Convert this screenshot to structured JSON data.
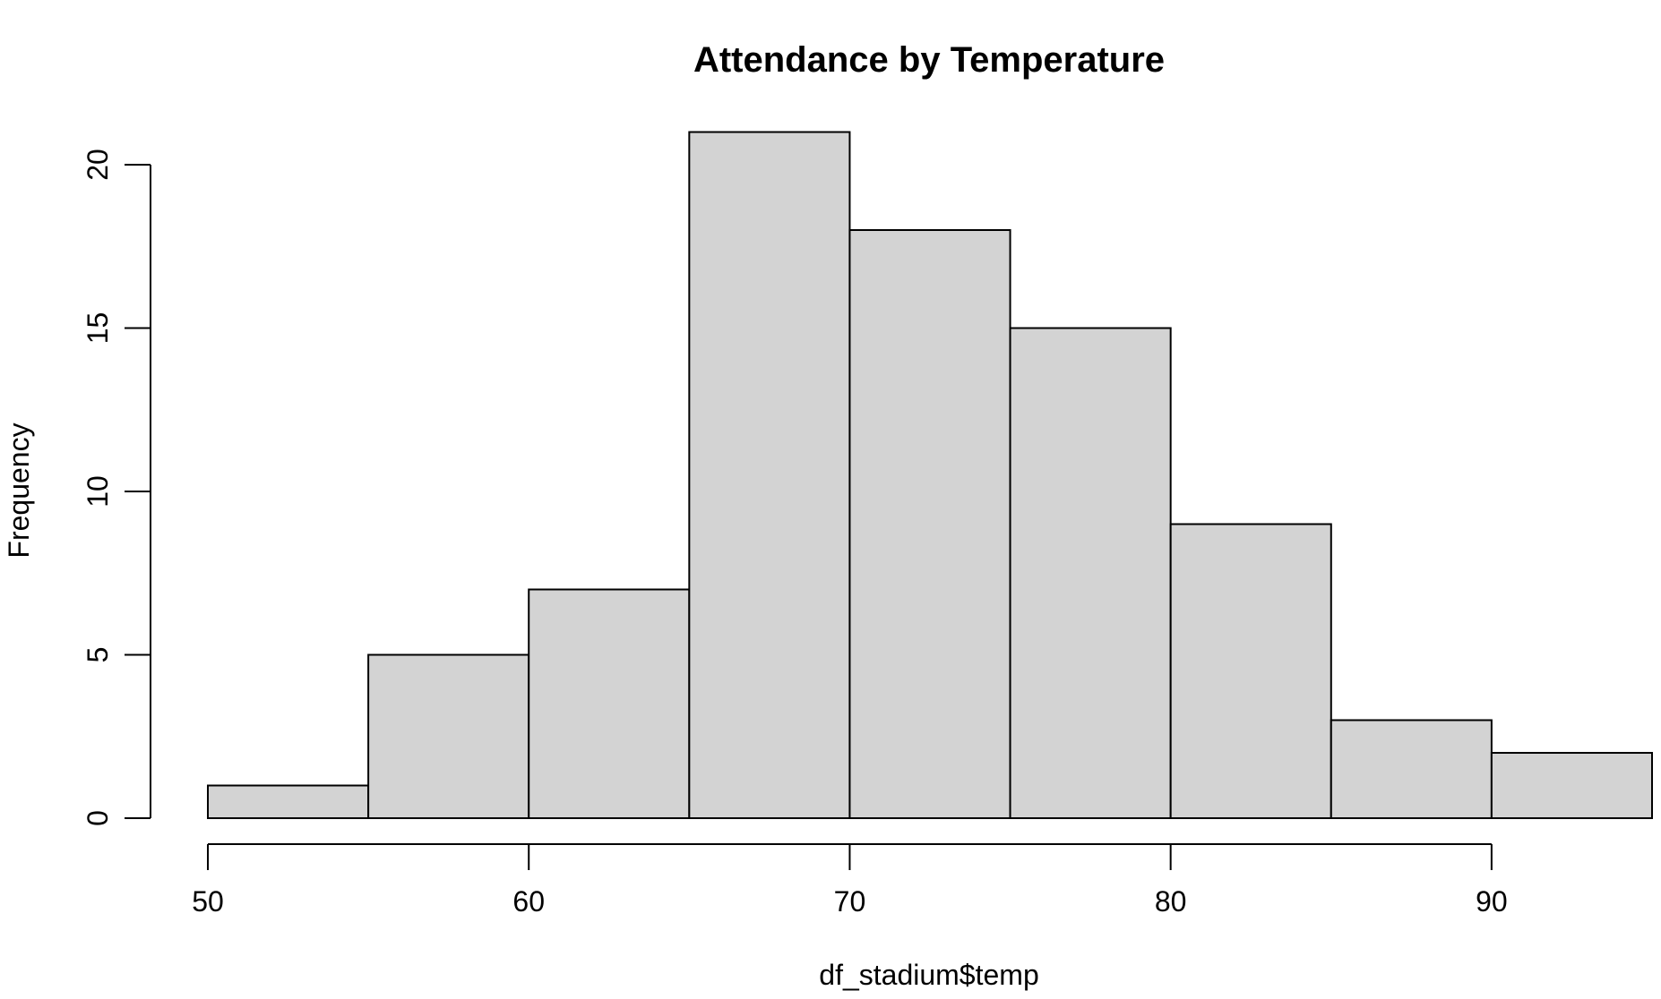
{
  "chart_data": {
    "type": "bar",
    "title": "Attendance by Temperature",
    "xlabel": "df_stadium$temp",
    "ylabel": "Frequency",
    "bin_edges": [
      50,
      55,
      60,
      65,
      70,
      75,
      80,
      85,
      90,
      95
    ],
    "values": [
      1,
      5,
      7,
      21,
      18,
      15,
      9,
      3,
      2
    ],
    "xlim": [
      50,
      95
    ],
    "ylim": [
      0,
      21
    ],
    "x_ticks": [
      50,
      60,
      70,
      80,
      90
    ],
    "y_ticks": [
      0,
      5,
      10,
      15,
      20
    ],
    "bar_color": "#d3d3d3",
    "grid": false
  }
}
